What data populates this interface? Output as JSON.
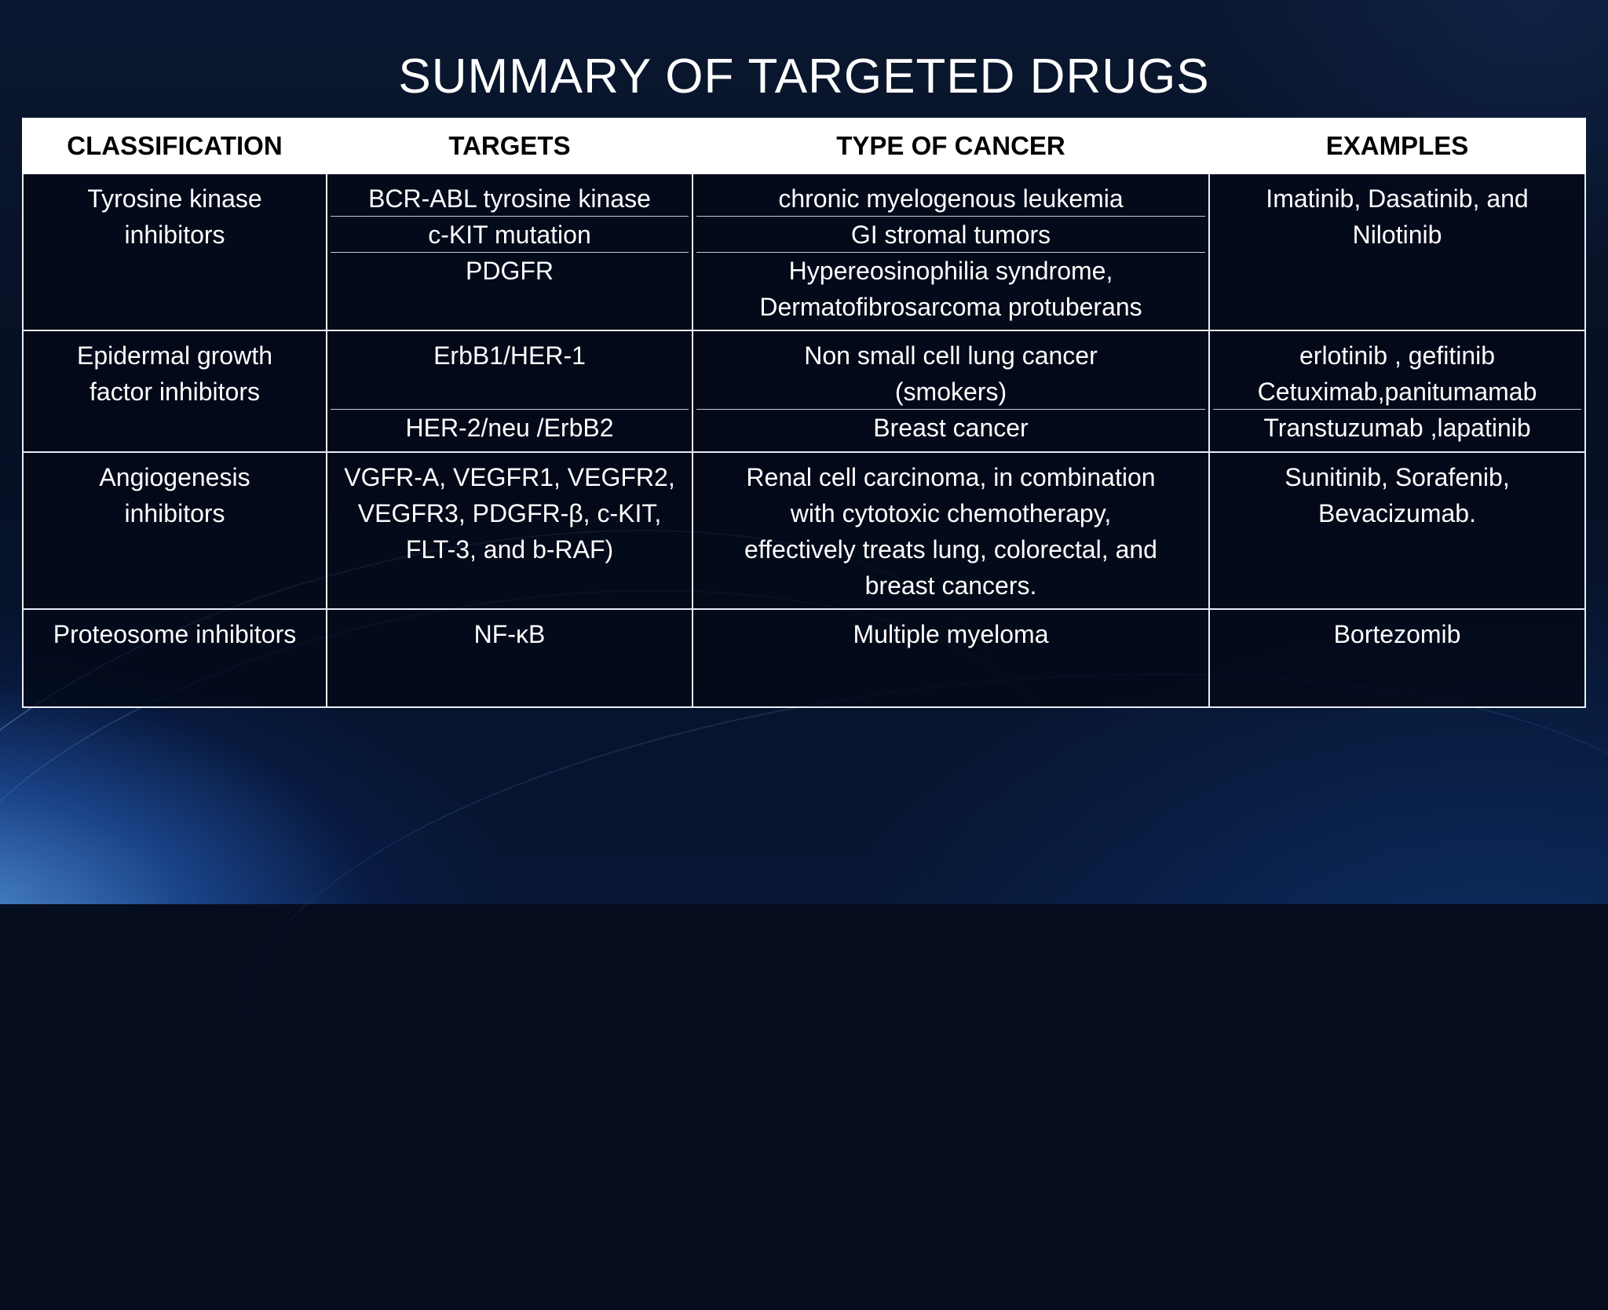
{
  "slide": {
    "title": "SUMMARY OF TARGETED DRUGS"
  },
  "table": {
    "headers": [
      "CLASSIFICATION",
      "TARGETS",
      "TYPE OF CANCER",
      "EXAMPLES"
    ],
    "rows": [
      {
        "classification": [
          "Tyrosine kinase",
          "inhibitors"
        ],
        "targets": [
          "BCR-ABL tyrosine kinase",
          "c-KIT mutation",
          "PDGFR"
        ],
        "cancer": [
          "chronic myelogenous leukemia",
          "GI stromal tumors",
          "Hypereosinophilia syndrome,",
          "Dermatofibrosarcoma protuberans"
        ],
        "examples": [
          "Imatinib, Dasatinib, and",
          "Nilotinib"
        ]
      },
      {
        "classification": [
          "Epidermal growth",
          "factor inhibitors"
        ],
        "targets": [
          "ErbB1/HER-1",
          "HER-2/neu /ErbB2"
        ],
        "cancer": [
          "Non small cell lung cancer",
          "(smokers)",
          "Breast cancer"
        ],
        "examples": [
          "erlotinib , gefitinib",
          "Cetuximab,panitumamab",
          "Transtuzumab ,lapatinib"
        ]
      },
      {
        "classification": [
          "Angiogenesis",
          "inhibitors"
        ],
        "targets": [
          "VGFR-A, VEGFR1, VEGFR2,",
          "VEGFR3, PDGFR-β, c-KIT,",
          "FLT-3, and b-RAF)"
        ],
        "cancer": [
          "Renal cell carcinoma, in combination",
          "with cytotoxic chemotherapy,",
          "effectively treats lung, colorectal, and",
          "breast cancers."
        ],
        "examples": [
          "Sunitinib, Sorafenib,",
          "Bevacizumab."
        ]
      },
      {
        "classification": [
          "Proteosome inhibitors"
        ],
        "targets": [
          "NF-κB"
        ],
        "cancer": [
          "Multiple myeloma"
        ],
        "examples": [
          "Bortezomib"
        ]
      }
    ]
  }
}
